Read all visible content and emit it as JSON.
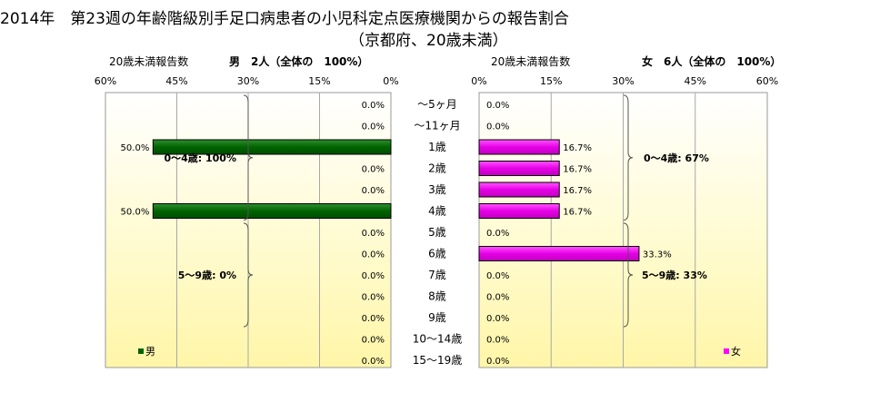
{
  "title": "2014年　第23週の年齢階級別手足口病患者の小児科定点医療機関からの報告割合",
  "subtitle": "（京都府、20歳未満）",
  "chart_data": [
    {
      "type": "bar",
      "orientation": "horizontal",
      "direction": "right-to-left",
      "label": "20歳未満報告数",
      "header": "男　2人（全体の　100%）",
      "xlim": [
        0,
        60
      ],
      "ticks": [
        "60%",
        "45%",
        "30%",
        "15%",
        "0%"
      ],
      "tick_values": [
        60,
        45,
        30,
        15,
        0
      ],
      "legend": "男",
      "legend_position": "bottom-left",
      "color": "#006400",
      "categories": [
        "～5ヶ月",
        "～11ヶ月",
        "1歳",
        "2歳",
        "3歳",
        "4歳",
        "5歳",
        "6歳",
        "7歳",
        "8歳",
        "9歳",
        "10～14歳",
        "15～19歳"
      ],
      "values": [
        0.0,
        0.0,
        50.0,
        0.0,
        0.0,
        50.0,
        0.0,
        0.0,
        0.0,
        0.0,
        0.0,
        0.0,
        0.0
      ],
      "value_labels": [
        "0.0%",
        "0.0%",
        "50.0%",
        "0.0%",
        "0.0%",
        "50.0%",
        "0.0%",
        "0.0%",
        "0.0%",
        "0.0%",
        "0.0%",
        "0.0%",
        "0.0%"
      ],
      "groups": [
        {
          "label": "0～4歳: 100%",
          "from": 0,
          "to": 5
        },
        {
          "label": "5～9歳: 0%",
          "from": 6,
          "to": 10
        }
      ]
    },
    {
      "type": "bar",
      "orientation": "horizontal",
      "direction": "left-to-right",
      "label": "20歳未満報告数",
      "header": "女　6人（全体の　100%）",
      "xlim": [
        0,
        60
      ],
      "ticks": [
        "0%",
        "15%",
        "30%",
        "45%",
        "60%"
      ],
      "tick_values": [
        0,
        15,
        30,
        45,
        60
      ],
      "legend": "女",
      "legend_position": "bottom-right",
      "color": "#ff00ff",
      "categories": [
        "～5ヶ月",
        "～11ヶ月",
        "1歳",
        "2歳",
        "3歳",
        "4歳",
        "5歳",
        "6歳",
        "7歳",
        "8歳",
        "9歳",
        "10～14歳",
        "15～19歳"
      ],
      "values": [
        0.0,
        0.0,
        16.7,
        16.7,
        16.7,
        16.7,
        0.0,
        33.3,
        0.0,
        0.0,
        0.0,
        0.0,
        0.0
      ],
      "value_labels": [
        "0.0%",
        "0.0%",
        "16.7%",
        "16.7%",
        "16.7%",
        "16.7%",
        "0.0%",
        "33.3%",
        "0.0%",
        "0.0%",
        "0.0%",
        "0.0%",
        "0.0%"
      ],
      "groups": [
        {
          "label": "0～4歳: 67%",
          "from": 0,
          "to": 5
        },
        {
          "label": "5～9歳: 33%",
          "from": 6,
          "to": 10
        }
      ]
    }
  ]
}
